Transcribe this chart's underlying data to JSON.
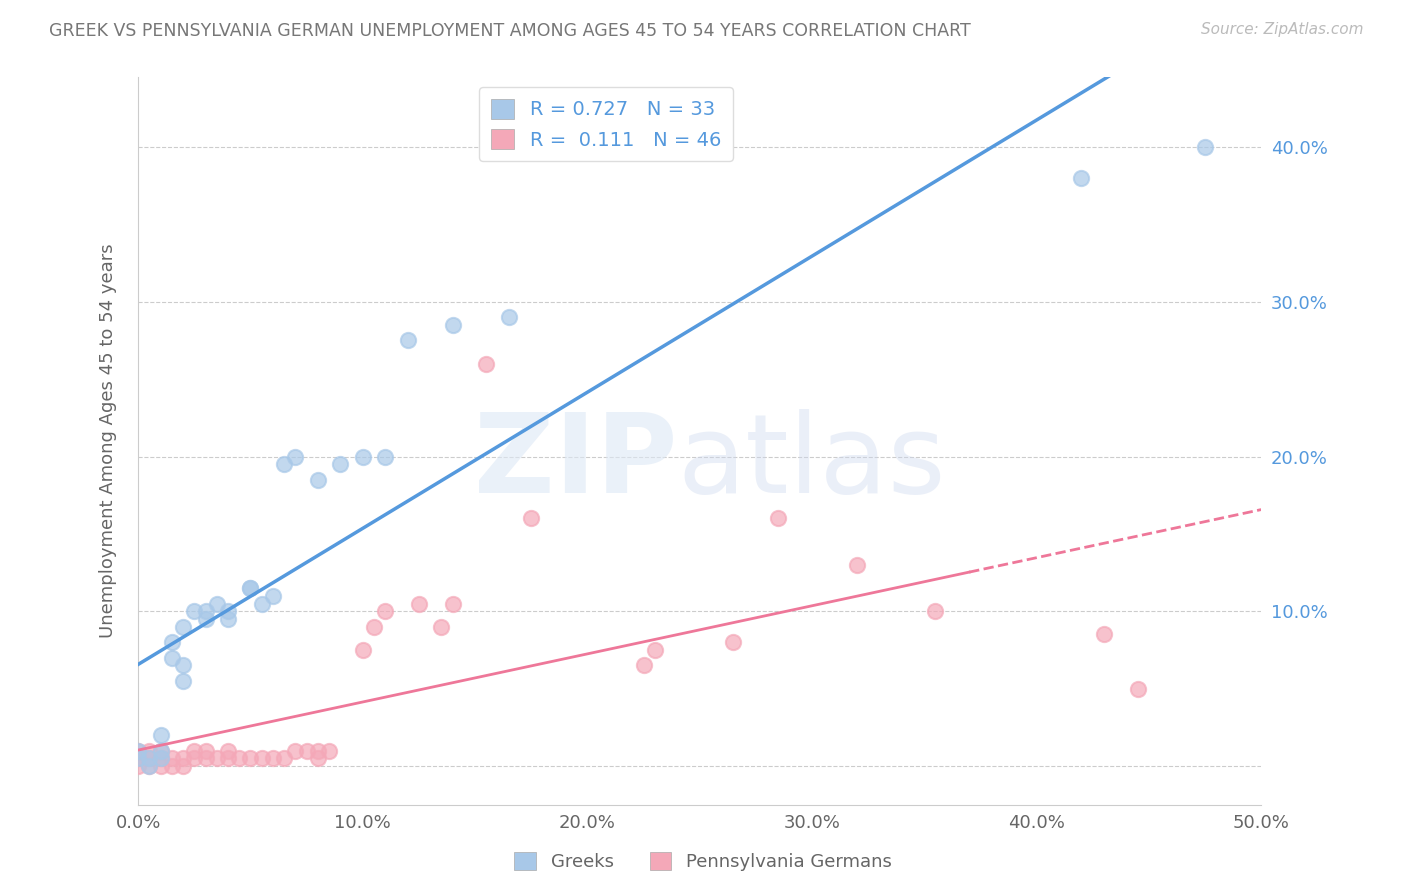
{
  "title": "GREEK VS PENNSYLVANIA GERMAN UNEMPLOYMENT AMONG AGES 45 TO 54 YEARS CORRELATION CHART",
  "source": "Source: ZipAtlas.com",
  "ylabel": "Unemployment Among Ages 45 to 54 years",
  "xlim": [
    0.0,
    0.5
  ],
  "ylim": [
    -0.025,
    0.445
  ],
  "xticks": [
    0.0,
    0.1,
    0.2,
    0.3,
    0.4,
    0.5
  ],
  "xticklabels": [
    "0.0%",
    "10.0%",
    "20.0%",
    "30.0%",
    "40.0%",
    "50.0%"
  ],
  "yticks": [
    0.0,
    0.1,
    0.2,
    0.3,
    0.4
  ],
  "yticklabels": [
    "",
    "10.0%",
    "20.0%",
    "30.0%",
    "40.0%"
  ],
  "greek_color": "#a8c8e8",
  "penn_color": "#f4a8b8",
  "line_blue": "#5599dd",
  "line_pink": "#ee7799",
  "legend_r1": "R = 0.727",
  "legend_n1": "N = 33",
  "legend_r2": "R =  0.111",
  "legend_n2": "N = 46",
  "greek_scatter_x": [
    0.0,
    0.0,
    0.005,
    0.005,
    0.01,
    0.01,
    0.01,
    0.015,
    0.015,
    0.02,
    0.02,
    0.02,
    0.025,
    0.03,
    0.03,
    0.035,
    0.04,
    0.04,
    0.05,
    0.05,
    0.055,
    0.06,
    0.065,
    0.07,
    0.08,
    0.09,
    0.1,
    0.11,
    0.12,
    0.14,
    0.165,
    0.42,
    0.475
  ],
  "greek_scatter_y": [
    0.005,
    0.01,
    0.0,
    0.005,
    0.005,
    0.01,
    0.02,
    0.07,
    0.08,
    0.055,
    0.065,
    0.09,
    0.1,
    0.095,
    0.1,
    0.105,
    0.095,
    0.1,
    0.115,
    0.115,
    0.105,
    0.11,
    0.195,
    0.2,
    0.185,
    0.195,
    0.2,
    0.2,
    0.275,
    0.285,
    0.29,
    0.38,
    0.4
  ],
  "penn_scatter_x": [
    0.0,
    0.0,
    0.0,
    0.005,
    0.005,
    0.005,
    0.01,
    0.01,
    0.01,
    0.015,
    0.015,
    0.02,
    0.02,
    0.025,
    0.025,
    0.03,
    0.03,
    0.035,
    0.04,
    0.04,
    0.045,
    0.05,
    0.055,
    0.06,
    0.065,
    0.07,
    0.075,
    0.08,
    0.08,
    0.085,
    0.1,
    0.105,
    0.11,
    0.125,
    0.135,
    0.14,
    0.155,
    0.175,
    0.225,
    0.23,
    0.265,
    0.285,
    0.32,
    0.355,
    0.43,
    0.445
  ],
  "penn_scatter_y": [
    0.0,
    0.005,
    0.01,
    0.0,
    0.005,
    0.01,
    0.0,
    0.005,
    0.01,
    0.0,
    0.005,
    0.0,
    0.005,
    0.005,
    0.01,
    0.005,
    0.01,
    0.005,
    0.005,
    0.01,
    0.005,
    0.005,
    0.005,
    0.005,
    0.005,
    0.01,
    0.01,
    0.005,
    0.01,
    0.01,
    0.075,
    0.09,
    0.1,
    0.105,
    0.09,
    0.105,
    0.26,
    0.16,
    0.065,
    0.075,
    0.08,
    0.16,
    0.13,
    0.1,
    0.085,
    0.05
  ]
}
